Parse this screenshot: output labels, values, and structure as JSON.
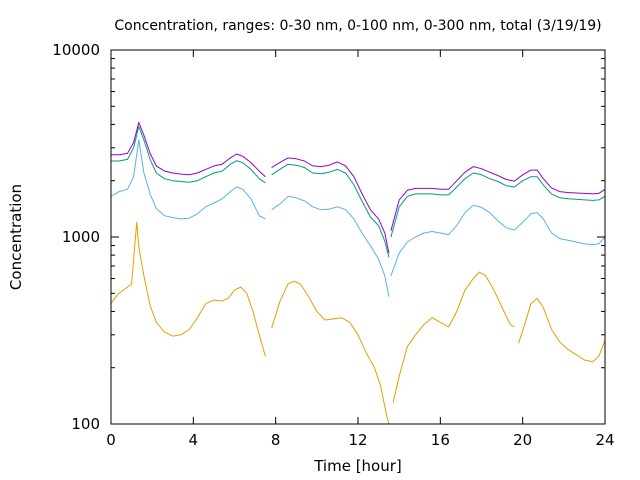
{
  "chart_data": {
    "type": "line",
    "title": "Concentration, ranges: 0-30 nm, 0-100 nm, 0-300 nm, total (3/19/19)",
    "xlabel": "Time [hour]",
    "ylabel": "Concentration",
    "xlim": [
      0,
      24
    ],
    "ylim": [
      100,
      10000
    ],
    "yscale": "log",
    "grid": false,
    "legend": "none",
    "x_ticks": [
      0,
      4,
      8,
      12,
      16,
      20,
      24
    ],
    "y_ticks": [
      100,
      1000,
      10000
    ],
    "series": [
      {
        "color": "#e69f00",
        "segments": [
          [
            [
              0,
              440
            ],
            [
              0.3,
              490
            ],
            [
              0.6,
              520
            ],
            [
              1.0,
              560
            ],
            [
              1.25,
              1200
            ],
            [
              1.35,
              880
            ],
            [
              1.6,
              620
            ],
            [
              1.9,
              430
            ],
            [
              2.2,
              350
            ],
            [
              2.6,
              310
            ],
            [
              3.0,
              295
            ],
            [
              3.4,
              300
            ],
            [
              3.8,
              320
            ],
            [
              4.2,
              370
            ],
            [
              4.6,
              440
            ],
            [
              5.0,
              460
            ],
            [
              5.4,
              455
            ],
            [
              5.7,
              470
            ],
            [
              6.0,
              520
            ],
            [
              6.3,
              540
            ],
            [
              6.6,
              500
            ],
            [
              6.9,
              400
            ],
            [
              7.2,
              300
            ],
            [
              7.5,
              230
            ]
          ],
          [
            [
              7.8,
              325
            ],
            [
              8.2,
              450
            ],
            [
              8.6,
              560
            ],
            [
              8.9,
              580
            ],
            [
              9.2,
              560
            ],
            [
              9.6,
              480
            ],
            [
              10.0,
              400
            ],
            [
              10.4,
              360
            ],
            [
              10.8,
              365
            ],
            [
              11.2,
              370
            ],
            [
              11.6,
              350
            ],
            [
              12.0,
              300
            ],
            [
              12.4,
              240
            ],
            [
              12.8,
              200
            ],
            [
              13.1,
              160
            ],
            [
              13.4,
              110
            ],
            [
              13.5,
              100
            ]
          ],
          [
            [
              13.7,
              130
            ],
            [
              14.0,
              180
            ],
            [
              14.4,
              260
            ],
            [
              14.8,
              300
            ],
            [
              15.2,
              340
            ],
            [
              15.6,
              370
            ],
            [
              16.0,
              350
            ],
            [
              16.4,
              330
            ],
            [
              16.8,
              400
            ],
            [
              17.2,
              520
            ],
            [
              17.6,
              600
            ],
            [
              17.9,
              650
            ],
            [
              18.2,
              620
            ],
            [
              18.6,
              520
            ],
            [
              19.0,
              420
            ],
            [
              19.4,
              340
            ],
            [
              19.6,
              330
            ]
          ],
          [
            [
              19.8,
              270
            ],
            [
              20.1,
              340
            ],
            [
              20.4,
              440
            ],
            [
              20.7,
              470
            ],
            [
              21.0,
              420
            ],
            [
              21.4,
              320
            ],
            [
              21.8,
              275
            ],
            [
              22.2,
              250
            ],
            [
              22.6,
              235
            ],
            [
              23.0,
              220
            ],
            [
              23.4,
              215
            ],
            [
              23.7,
              230
            ],
            [
              24.0,
              280
            ]
          ]
        ]
      },
      {
        "color": "#56b4e9",
        "segments": [
          [
            [
              0,
              1650
            ],
            [
              0.4,
              1750
            ],
            [
              0.8,
              1800
            ],
            [
              1.1,
              2100
            ],
            [
              1.35,
              3300
            ],
            [
              1.6,
              2200
            ],
            [
              1.9,
              1700
            ],
            [
              2.2,
              1420
            ],
            [
              2.6,
              1300
            ],
            [
              3.0,
              1270
            ],
            [
              3.4,
              1250
            ],
            [
              3.8,
              1260
            ],
            [
              4.2,
              1330
            ],
            [
              4.6,
              1450
            ],
            [
              5.0,
              1520
            ],
            [
              5.4,
              1600
            ],
            [
              5.8,
              1750
            ],
            [
              6.1,
              1850
            ],
            [
              6.4,
              1800
            ],
            [
              6.8,
              1600
            ],
            [
              7.2,
              1300
            ],
            [
              7.5,
              1250
            ]
          ],
          [
            [
              7.8,
              1400
            ],
            [
              8.2,
              1500
            ],
            [
              8.6,
              1650
            ],
            [
              9.0,
              1620
            ],
            [
              9.4,
              1560
            ],
            [
              9.8,
              1450
            ],
            [
              10.2,
              1400
            ],
            [
              10.6,
              1410
            ],
            [
              11.0,
              1450
            ],
            [
              11.4,
              1400
            ],
            [
              11.8,
              1250
            ],
            [
              12.2,
              1050
            ],
            [
              12.6,
              900
            ],
            [
              13.0,
              760
            ],
            [
              13.3,
              620
            ],
            [
              13.5,
              480
            ]
          ],
          [
            [
              13.6,
              620
            ],
            [
              14.0,
              820
            ],
            [
              14.4,
              940
            ],
            [
              14.8,
              1000
            ],
            [
              15.2,
              1050
            ],
            [
              15.6,
              1070
            ],
            [
              16.0,
              1050
            ],
            [
              16.4,
              1030
            ],
            [
              16.8,
              1150
            ],
            [
              17.2,
              1350
            ],
            [
              17.6,
              1480
            ],
            [
              18.0,
              1440
            ],
            [
              18.4,
              1350
            ],
            [
              18.8,
              1220
            ],
            [
              19.2,
              1120
            ],
            [
              19.6,
              1090
            ],
            [
              20.0,
              1200
            ],
            [
              20.4,
              1330
            ],
            [
              20.7,
              1350
            ],
            [
              21.0,
              1250
            ],
            [
              21.4,
              1050
            ],
            [
              21.8,
              980
            ],
            [
              22.2,
              960
            ],
            [
              22.6,
              940
            ],
            [
              23.0,
              920
            ],
            [
              23.4,
              910
            ],
            [
              23.7,
              920
            ],
            [
              24.0,
              1000
            ]
          ]
        ]
      },
      {
        "color": "#009e73",
        "segments": [
          [
            [
              0,
              2550
            ],
            [
              0.4,
              2550
            ],
            [
              0.8,
              2600
            ],
            [
              1.1,
              3000
            ],
            [
              1.35,
              3900
            ],
            [
              1.6,
              3300
            ],
            [
              1.9,
              2600
            ],
            [
              2.2,
              2200
            ],
            [
              2.6,
              2050
            ],
            [
              3.0,
              2000
            ],
            [
              3.4,
              1980
            ],
            [
              3.8,
              1960
            ],
            [
              4.2,
              2000
            ],
            [
              4.6,
              2100
            ],
            [
              5.0,
              2200
            ],
            [
              5.4,
              2250
            ],
            [
              5.8,
              2450
            ],
            [
              6.1,
              2560
            ],
            [
              6.4,
              2500
            ],
            [
              6.8,
              2300
            ],
            [
              7.2,
              2050
            ],
            [
              7.5,
              1950
            ]
          ],
          [
            [
              7.8,
              2150
            ],
            [
              8.2,
              2300
            ],
            [
              8.6,
              2450
            ],
            [
              9.0,
              2420
            ],
            [
              9.4,
              2350
            ],
            [
              9.8,
              2200
            ],
            [
              10.2,
              2180
            ],
            [
              10.6,
              2220
            ],
            [
              11.0,
              2300
            ],
            [
              11.4,
              2200
            ],
            [
              11.8,
              1900
            ],
            [
              12.2,
              1550
            ],
            [
              12.6,
              1280
            ],
            [
              13.0,
              1150
            ],
            [
              13.3,
              950
            ],
            [
              13.5,
              780
            ]
          ],
          [
            [
              13.6,
              1000
            ],
            [
              14.0,
              1450
            ],
            [
              14.4,
              1650
            ],
            [
              14.8,
              1700
            ],
            [
              15.2,
              1700
            ],
            [
              15.6,
              1700
            ],
            [
              16.0,
              1680
            ],
            [
              16.4,
              1680
            ],
            [
              16.8,
              1850
            ],
            [
              17.2,
              2050
            ],
            [
              17.6,
              2200
            ],
            [
              18.0,
              2150
            ],
            [
              18.4,
              2050
            ],
            [
              18.8,
              1980
            ],
            [
              19.2,
              1880
            ],
            [
              19.6,
              1850
            ],
            [
              20.0,
              2000
            ],
            [
              20.4,
              2100
            ],
            [
              20.7,
              2100
            ],
            [
              21.0,
              1900
            ],
            [
              21.4,
              1700
            ],
            [
              21.8,
              1620
            ],
            [
              22.2,
              1600
            ],
            [
              22.6,
              1590
            ],
            [
              23.0,
              1580
            ],
            [
              23.4,
              1570
            ],
            [
              23.7,
              1580
            ],
            [
              24.0,
              1650
            ]
          ]
        ]
      },
      {
        "color": "#9400d3",
        "segments": [
          [
            [
              0,
              2750
            ],
            [
              0.4,
              2750
            ],
            [
              0.8,
              2800
            ],
            [
              1.1,
              3200
            ],
            [
              1.35,
              4100
            ],
            [
              1.6,
              3500
            ],
            [
              1.9,
              2800
            ],
            [
              2.2,
              2400
            ],
            [
              2.6,
              2250
            ],
            [
              3.0,
              2200
            ],
            [
              3.4,
              2170
            ],
            [
              3.8,
              2150
            ],
            [
              4.2,
              2200
            ],
            [
              4.6,
              2300
            ],
            [
              5.0,
              2400
            ],
            [
              5.4,
              2450
            ],
            [
              5.8,
              2650
            ],
            [
              6.1,
              2780
            ],
            [
              6.4,
              2700
            ],
            [
              6.8,
              2500
            ],
            [
              7.2,
              2250
            ],
            [
              7.5,
              2100
            ]
          ],
          [
            [
              7.8,
              2350
            ],
            [
              8.2,
              2500
            ],
            [
              8.6,
              2650
            ],
            [
              9.0,
              2620
            ],
            [
              9.4,
              2550
            ],
            [
              9.8,
              2400
            ],
            [
              10.2,
              2380
            ],
            [
              10.6,
              2420
            ],
            [
              11.0,
              2520
            ],
            [
              11.4,
              2400
            ],
            [
              11.8,
              2100
            ],
            [
              12.2,
              1700
            ],
            [
              12.6,
              1400
            ],
            [
              13.0,
              1250
            ],
            [
              13.3,
              1050
            ],
            [
              13.5,
              820
            ]
          ],
          [
            [
              13.6,
              1080
            ],
            [
              14.0,
              1580
            ],
            [
              14.4,
              1780
            ],
            [
              14.8,
              1820
            ],
            [
              15.2,
              1820
            ],
            [
              15.6,
              1820
            ],
            [
              16.0,
              1800
            ],
            [
              16.4,
              1800
            ],
            [
              16.8,
              2000
            ],
            [
              17.2,
              2220
            ],
            [
              17.6,
              2380
            ],
            [
              18.0,
              2320
            ],
            [
              18.4,
              2220
            ],
            [
              18.8,
              2130
            ],
            [
              19.2,
              2030
            ],
            [
              19.6,
              1990
            ],
            [
              20.0,
              2150
            ],
            [
              20.4,
              2280
            ],
            [
              20.7,
              2280
            ],
            [
              21.0,
              2050
            ],
            [
              21.4,
              1830
            ],
            [
              21.8,
              1750
            ],
            [
              22.2,
              1730
            ],
            [
              22.6,
              1720
            ],
            [
              23.0,
              1710
            ],
            [
              23.4,
              1700
            ],
            [
              23.7,
              1710
            ],
            [
              24.0,
              1800
            ]
          ]
        ]
      }
    ]
  }
}
